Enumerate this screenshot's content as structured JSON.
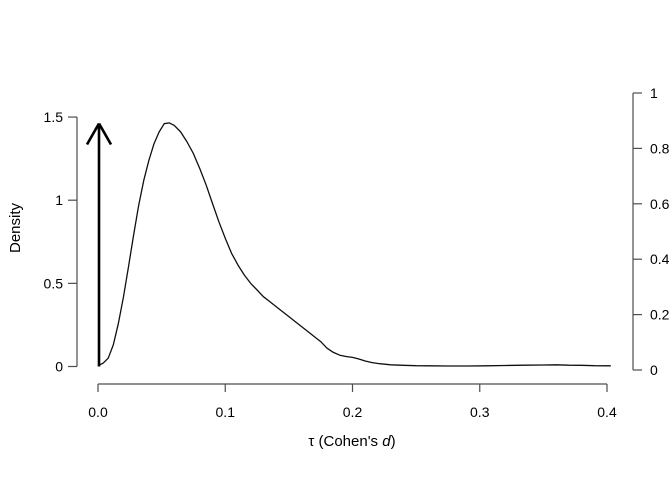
{
  "colors": {
    "background": "#ffffff",
    "curve": "#0f0f0f",
    "axes": "#4d4d4d",
    "arrow": "#000000",
    "text": "#000000"
  },
  "chart_data": {
    "type": "line",
    "description": "Density of tau (Cohen's d) with a point-mass spike at zero shown as an upward arrow; secondary right axis gives the probability scale of the point mass",
    "xlabel_parts": {
      "pre": "τ (Cohen's ",
      "italic": "d",
      "post": ")"
    },
    "ylabel_left": "Density",
    "x_axis": {
      "min": 0.0,
      "max": 0.4,
      "ticks": [
        0.0,
        0.1,
        0.2,
        0.3,
        0.4
      ],
      "tick_labels": [
        "0.0",
        "0.1",
        "0.2",
        "0.3",
        "0.4"
      ]
    },
    "y_axis_left": {
      "min": 0,
      "max": 1.5,
      "ticks": [
        0,
        0.5,
        1,
        1.5
      ],
      "tick_labels": [
        "0",
        "0.5",
        "1",
        "1.5"
      ]
    },
    "y_axis_right": {
      "min": 0,
      "max": 1,
      "ticks": [
        0,
        0.2,
        0.4,
        0.6,
        0.8,
        1
      ],
      "tick_labels": [
        "0",
        "0.2",
        "0.4",
        "0.6",
        "0.8",
        "1"
      ]
    },
    "grid": false,
    "legend": false,
    "point_mass_arrow": {
      "x": 0.0,
      "probability_right_axis": 0.89
    },
    "series": [
      {
        "name": "tau-density",
        "points": [
          [
            0.0,
            0.005
          ],
          [
            0.004,
            0.02
          ],
          [
            0.008,
            0.05
          ],
          [
            0.012,
            0.13
          ],
          [
            0.016,
            0.26
          ],
          [
            0.02,
            0.42
          ],
          [
            0.024,
            0.6
          ],
          [
            0.028,
            0.79
          ],
          [
            0.032,
            0.97
          ],
          [
            0.036,
            1.12
          ],
          [
            0.04,
            1.24
          ],
          [
            0.044,
            1.34
          ],
          [
            0.048,
            1.41
          ],
          [
            0.052,
            1.46
          ],
          [
            0.056,
            1.465
          ],
          [
            0.06,
            1.45
          ],
          [
            0.065,
            1.41
          ],
          [
            0.07,
            1.35
          ],
          [
            0.075,
            1.28
          ],
          [
            0.08,
            1.19
          ],
          [
            0.085,
            1.09
          ],
          [
            0.09,
            0.98
          ],
          [
            0.095,
            0.87
          ],
          [
            0.1,
            0.77
          ],
          [
            0.105,
            0.68
          ],
          [
            0.11,
            0.61
          ],
          [
            0.115,
            0.55
          ],
          [
            0.12,
            0.5
          ],
          [
            0.125,
            0.46
          ],
          [
            0.13,
            0.42
          ],
          [
            0.135,
            0.39
          ],
          [
            0.14,
            0.36
          ],
          [
            0.145,
            0.33
          ],
          [
            0.15,
            0.3
          ],
          [
            0.155,
            0.27
          ],
          [
            0.16,
            0.24
          ],
          [
            0.165,
            0.21
          ],
          [
            0.17,
            0.18
          ],
          [
            0.175,
            0.15
          ],
          [
            0.18,
            0.11
          ],
          [
            0.185,
            0.085
          ],
          [
            0.19,
            0.068
          ],
          [
            0.195,
            0.06
          ],
          [
            0.2,
            0.055
          ],
          [
            0.205,
            0.045
          ],
          [
            0.21,
            0.033
          ],
          [
            0.215,
            0.024
          ],
          [
            0.22,
            0.018
          ],
          [
            0.23,
            0.01
          ],
          [
            0.24,
            0.007
          ],
          [
            0.25,
            0.005
          ],
          [
            0.26,
            0.004
          ],
          [
            0.275,
            0.003
          ],
          [
            0.29,
            0.003
          ],
          [
            0.305,
            0.004
          ],
          [
            0.32,
            0.006
          ],
          [
            0.335,
            0.008
          ],
          [
            0.35,
            0.009
          ],
          [
            0.36,
            0.01
          ],
          [
            0.37,
            0.008
          ],
          [
            0.38,
            0.007
          ],
          [
            0.39,
            0.005
          ],
          [
            0.4,
            0.004
          ],
          [
            0.403,
            0.004
          ]
        ]
      }
    ]
  }
}
